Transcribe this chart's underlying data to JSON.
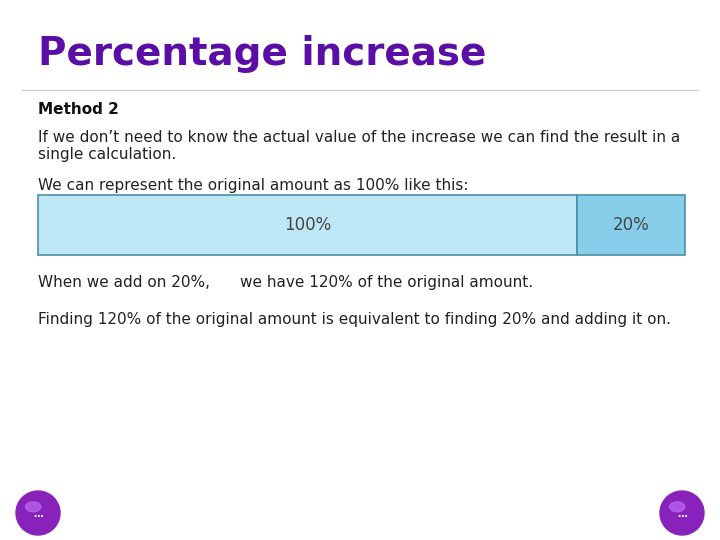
{
  "title": "Percentage increase",
  "title_color": "#5B0EA6",
  "title_fontsize": 28,
  "background_color": "#FFFFFF",
  "method_label": "Method 2",
  "line1": "If we don’t need to know the actual value of the increase we can find the result in a",
  "line2": "single calculation.",
  "line3": "We can represent the original amount as 100% like this:",
  "bar_100_label": "100%",
  "bar_20_label": "20%",
  "bar_100_color": "#BEE8F5",
  "bar_20_color": "#87CEEB",
  "bar_border_color": "#4A90A4",
  "text_below_left": "When we add on 20%,",
  "text_below_right": "we have 120% of the original amount.",
  "text_bottom": "Finding 120% of the original amount is equivalent to finding 20% and adding it on.",
  "body_fontsize": 11,
  "body_color": "#222222",
  "bar_label_color": "#444444",
  "bar_label_fontsize": 12,
  "btn_color": "#8822BB",
  "btn_highlight": "#BB66EE"
}
